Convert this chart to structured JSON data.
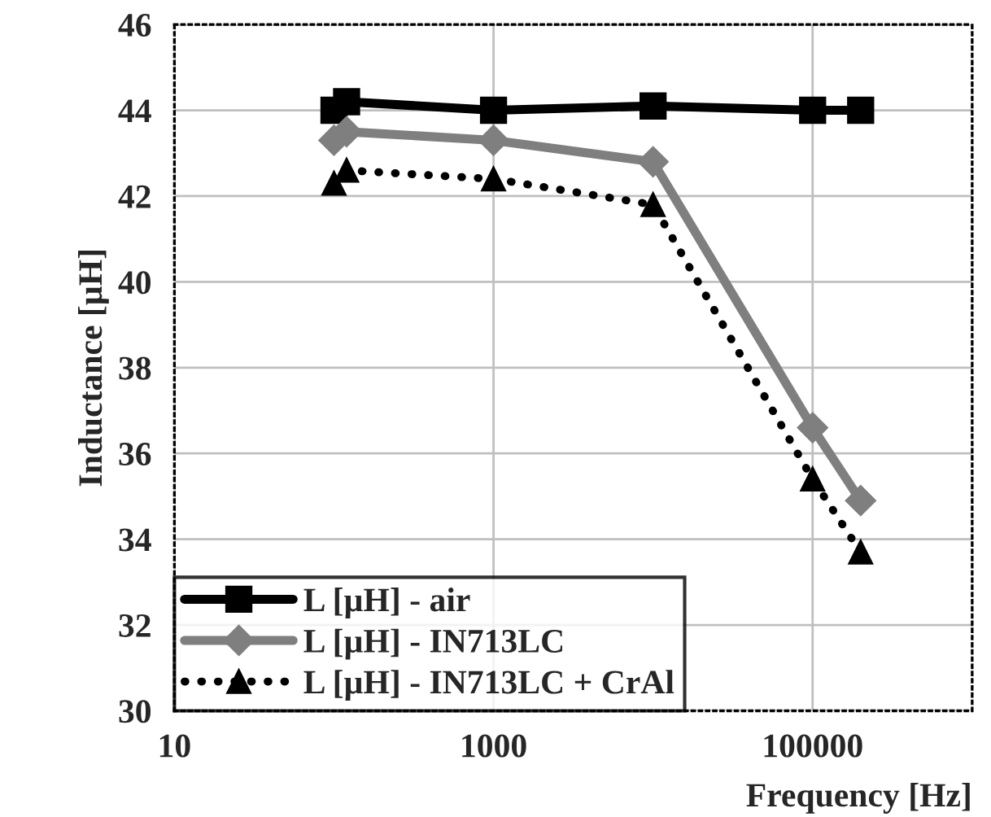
{
  "chart_data": {
    "type": "line",
    "xlabel": "Frequency [Hz]",
    "ylabel": "Inductance [µH]",
    "log": "x",
    "xlim": [
      10,
      1000000
    ],
    "xticks": [
      10,
      1000,
      100000
    ],
    "ylim": [
      30,
      46
    ],
    "yticks": [
      30,
      32,
      34,
      36,
      38,
      40,
      42,
      44,
      46
    ],
    "grid": true,
    "legend": "bottom left",
    "series": [
      {
        "name": "L [µH] - air",
        "color": "#000000",
        "marker": "square",
        "line_style": "solid",
        "x": [
          100,
          120,
          1000,
          10000,
          100000,
          200000
        ],
        "values": [
          44.0,
          44.2,
          44.0,
          44.1,
          44.0,
          44.0
        ]
      },
      {
        "name": "L [µH] - IN713LC",
        "color": "#7f7f7f",
        "marker": "diamond",
        "line_style": "solid",
        "x": [
          100,
          120,
          1000,
          10000,
          100000,
          200000
        ],
        "values": [
          43.3,
          43.5,
          43.3,
          42.8,
          36.6,
          34.9
        ]
      },
      {
        "name": "L [µH] - IN713LC + CrAl",
        "color": "#000000",
        "marker": "triangle",
        "line_style": "dotted",
        "x": [
          100,
          120,
          1000,
          10000,
          100000,
          200000
        ],
        "values": [
          42.3,
          42.6,
          42.4,
          41.8,
          35.4,
          33.7
        ]
      }
    ]
  }
}
